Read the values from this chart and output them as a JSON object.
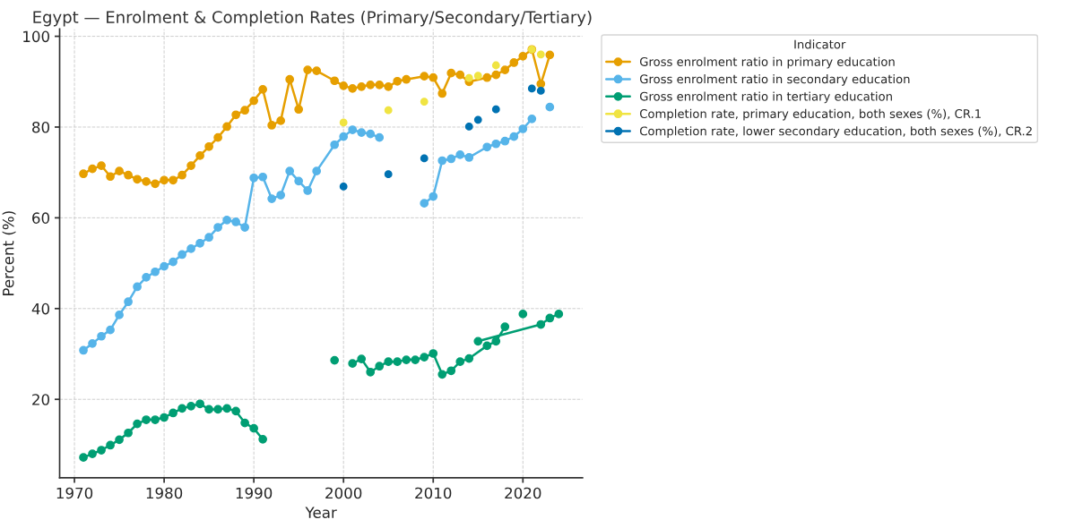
{
  "chart_data": {
    "type": "line",
    "title": "Egypt — Enrolment & Completion Rates (Primary/Secondary/Tertiary)",
    "xlabel": "Year",
    "ylabel": "Percent (%)",
    "legend_title": "Indicator",
    "series": [
      {
        "name": "Gross enrolment ratio in primary education",
        "color": "#e69f00",
        "type": "line",
        "x": [
          1971,
          1972,
          1973,
          1974,
          1975,
          1976,
          1977,
          1978,
          1979,
          1980,
          1981,
          1982,
          1983,
          1984,
          1985,
          1986,
          1987,
          1988,
          1989,
          1990,
          1991,
          1992,
          1993,
          1994,
          1995,
          1996,
          1997,
          1999,
          2000,
          2001,
          2002,
          2003,
          2004,
          2005,
          2006,
          2007,
          2009,
          2010,
          2011,
          2012,
          2013,
          2014,
          2016,
          2017,
          2018,
          2019,
          2020,
          2021,
          2022,
          2023
        ],
        "values": [
          69.7,
          70.8,
          71.5,
          69.1,
          70.3,
          69.4,
          68.5,
          68.0,
          67.5,
          68.3,
          68.3,
          69.4,
          71.5,
          73.7,
          75.7,
          77.7,
          80.1,
          82.7,
          83.7,
          85.8,
          88.3,
          80.4,
          81.4,
          90.5,
          83.9,
          92.6,
          92.4,
          90.2,
          89.1,
          88.5,
          88.9,
          89.3,
          89.3,
          88.9,
          90.1,
          90.5,
          91.2,
          90.9,
          87.4,
          91.9,
          91.5,
          90.0,
          90.9,
          91.5,
          92.6,
          94.2,
          95.6,
          97.1,
          89.5,
          95.9
        ]
      },
      {
        "name": "Gross enrolment ratio in secondary education",
        "color": "#56b4e9",
        "type": "line",
        "x": [
          1971,
          1972,
          1973,
          1974,
          1975,
          1976,
          1977,
          1978,
          1979,
          1980,
          1981,
          1982,
          1983,
          1984,
          1985,
          1986,
          1987,
          1988,
          1989,
          1990,
          1991,
          1992,
          1993,
          1994,
          1995,
          1996,
          1997,
          1999,
          2000,
          2001,
          2002,
          2003,
          2004,
          2005,
          2009,
          2010,
          2011,
          2012,
          2013,
          2014,
          2016,
          2017,
          2018,
          2019,
          2020,
          2021,
          2022,
          2023
        ],
        "values": [
          30.8,
          32.3,
          33.9,
          35.3,
          38.6,
          41.5,
          44.8,
          46.9,
          48.1,
          49.3,
          50.3,
          51.9,
          53.2,
          54.4,
          55.7,
          57.9,
          59.5,
          59.1,
          57.9,
          68.8,
          69.0,
          64.2,
          65.0,
          70.3,
          68.1,
          66.0,
          70.3,
          76.1,
          77.9,
          79.4,
          78.8,
          78.5,
          77.7,
          null,
          63.2,
          64.7,
          72.6,
          73.0,
          73.9,
          73.3,
          75.6,
          76.3,
          76.9,
          77.9,
          79.6,
          81.8,
          null,
          84.4
        ]
      },
      {
        "name": "Gross enrolment ratio in tertiary education",
        "color": "#009e73",
        "type": "line",
        "x": [
          1971,
          1972,
          1973,
          1974,
          1975,
          1976,
          1977,
          1978,
          1979,
          1980,
          1981,
          1982,
          1983,
          1984,
          1985,
          1986,
          1987,
          1988,
          1989,
          1990,
          1991,
          1995,
          1999,
          2000,
          2001,
          2002,
          2003,
          2004,
          2005,
          2006,
          2007,
          2008,
          2009,
          2010,
          2011,
          2012,
          2013,
          2014,
          2016,
          2017,
          2018,
          2019,
          2020,
          2017,
          2015,
          2022,
          2023,
          2024
        ],
        "values": [
          7.2,
          8.0,
          8.8,
          9.9,
          11.1,
          12.6,
          14.6,
          15.5,
          15.5,
          16.0,
          17.0,
          18.0,
          18.5,
          19.0,
          17.8,
          17.8,
          18.0,
          17.4,
          14.8,
          13.6,
          11.2,
          null,
          28.6,
          null,
          27.9,
          28.9,
          26.0,
          27.3,
          28.3,
          28.3,
          28.7,
          28.7,
          29.3,
          30.1,
          25.5,
          26.3,
          28.3,
          29.0,
          31.8,
          32.8,
          36.0,
          null,
          38.8,
          null,
          32.8,
          36.5,
          37.9,
          38.8
        ]
      },
      {
        "name": "Completion rate, primary education, both sexes (%), CR.1",
        "color": "#f0e442",
        "type": "scatter",
        "x": [
          2000,
          2005,
          2009,
          2014,
          2015,
          2017,
          2021,
          2022
        ],
        "values": [
          81.0,
          83.7,
          85.6,
          90.8,
          91.3,
          93.6,
          97.1,
          96.0
        ]
      },
      {
        "name": "Completion rate, lower secondary education, both sexes (%), CR.2",
        "color": "#0072b2",
        "type": "scatter",
        "x": [
          2000,
          2005,
          2009,
          2014,
          2015,
          2017,
          2021,
          2022
        ],
        "values": [
          66.9,
          69.6,
          73.1,
          80.1,
          81.6,
          83.9,
          88.5,
          88.0
        ]
      }
    ],
    "xlim": [
      1968.35,
      2026.65
    ],
    "ylim": [
      2.7,
      101.6
    ],
    "xticks": [
      1970,
      1980,
      1990,
      2000,
      2010,
      2020
    ],
    "yticks": [
      20,
      40,
      60,
      80,
      100
    ],
    "grid": true,
    "legend": "top right",
    "marker": "circle",
    "line_style": "solid"
  }
}
